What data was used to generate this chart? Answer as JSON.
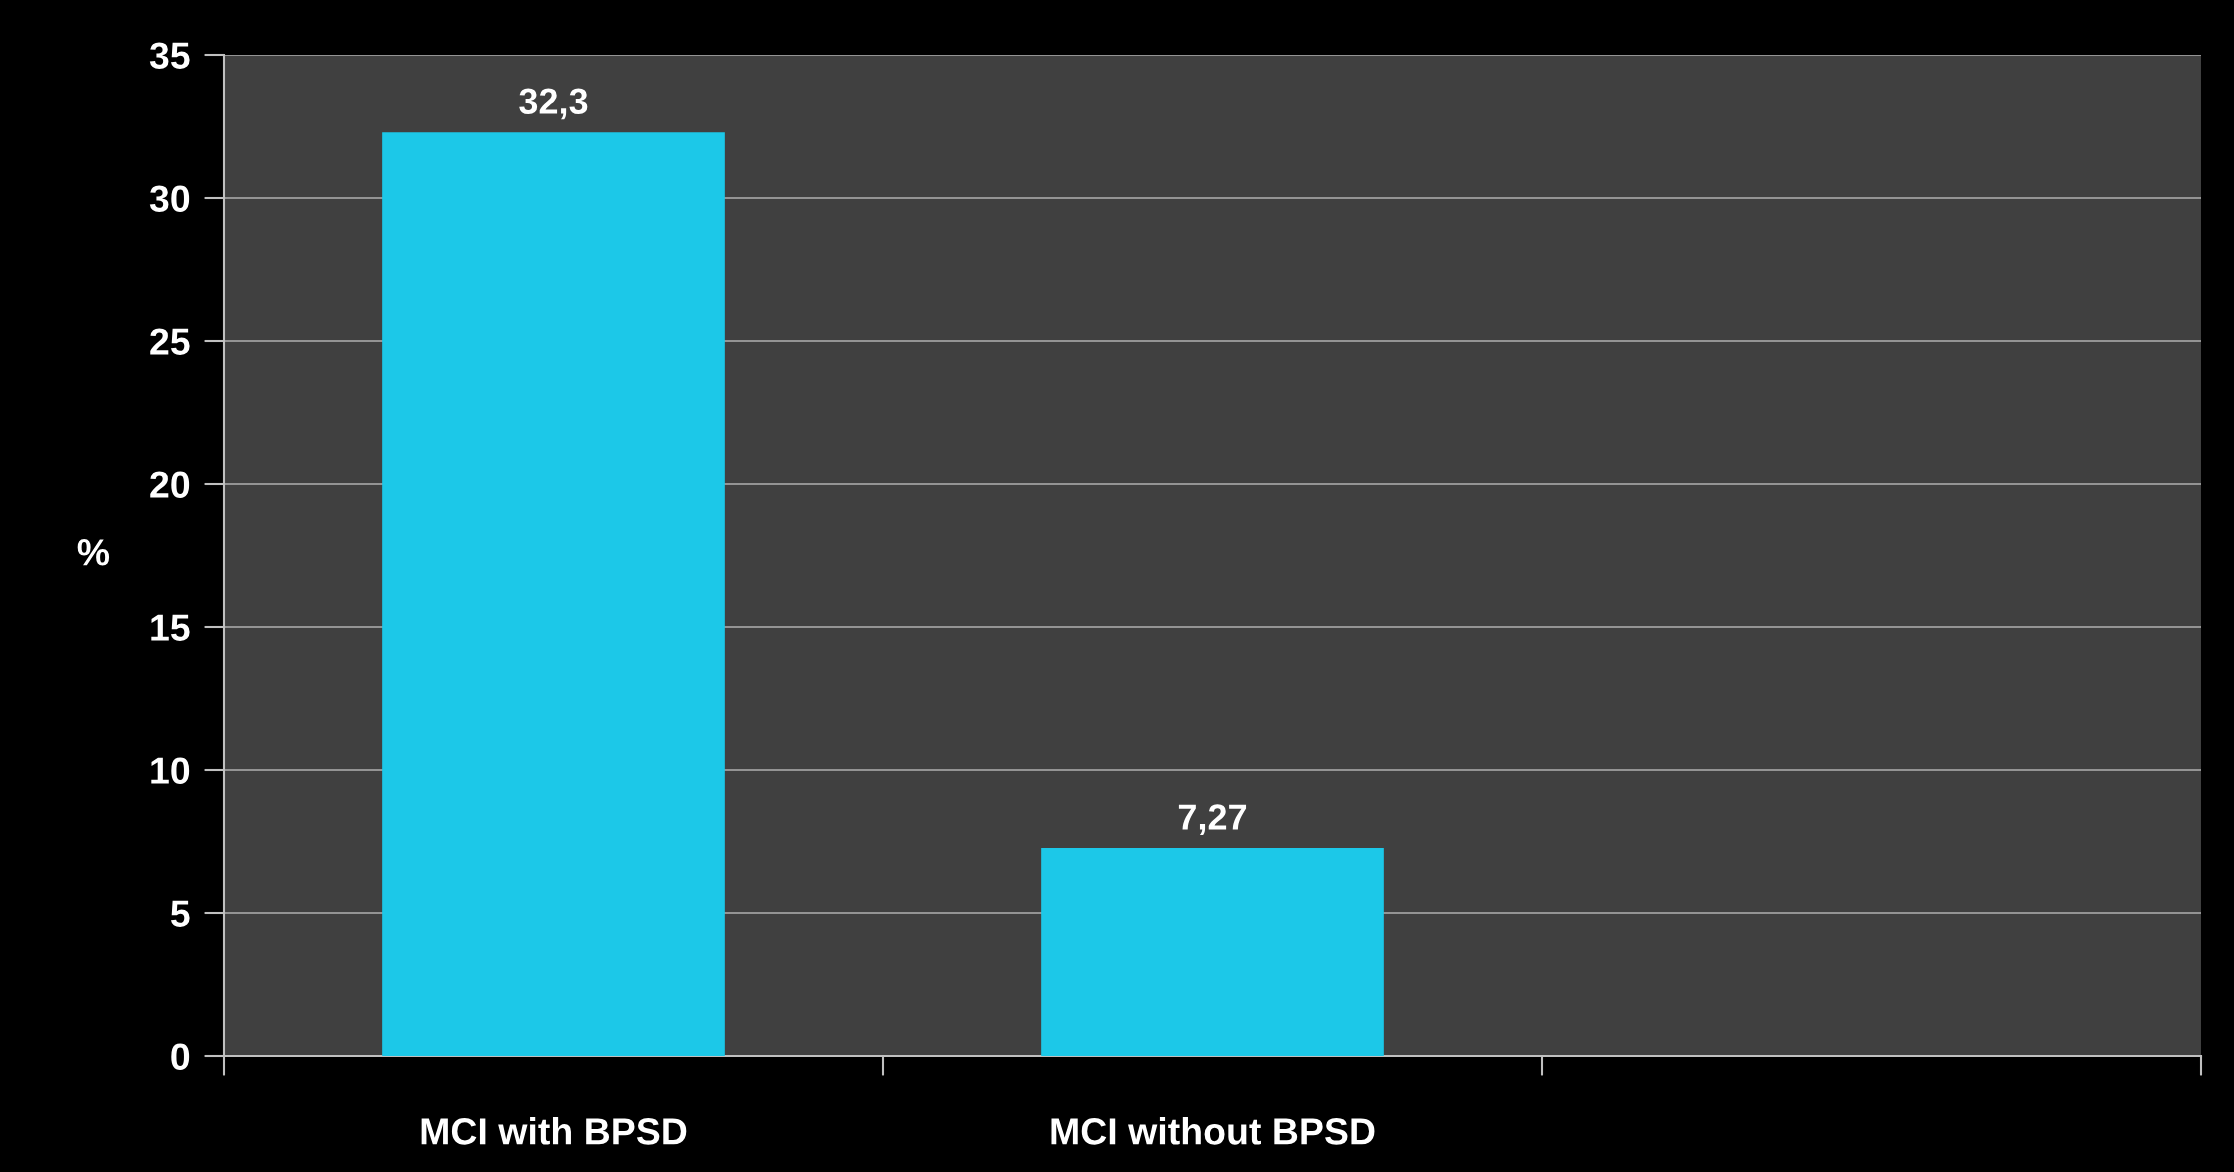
{
  "chart_data": {
    "type": "bar",
    "ylabel": "%",
    "categories": [
      "MCI with BPSD",
      "MCI without BPSD",
      null
    ],
    "values": [
      32.3,
      7.27,
      null
    ],
    "value_labels": [
      "32,3",
      "7,27",
      null
    ],
    "color": "#1cc8e8",
    "ylim": [
      0,
      35
    ],
    "yticks": [
      0,
      5,
      10,
      15,
      20,
      25,
      30,
      35
    ],
    "grid": "y",
    "legend": false
  }
}
